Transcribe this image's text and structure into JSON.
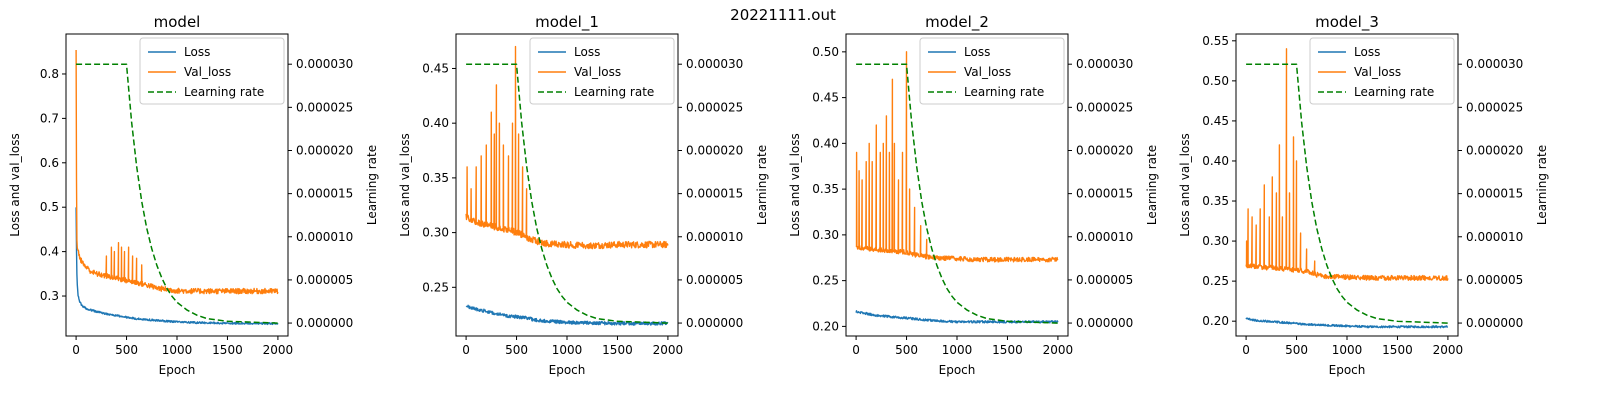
{
  "figure_title": "20221111.out",
  "legend_labels": [
    "Loss",
    "Val_loss",
    "Learning rate"
  ],
  "colors": {
    "loss": "#1f77b4",
    "val_loss": "#ff7f0e",
    "learning_rate": "#008000",
    "axes": "#000000"
  },
  "chart_data": [
    {
      "type": "line",
      "title": "model",
      "xlabel": "Epoch",
      "ylabel": "Loss and val_loss",
      "ylabel_right": "Learning rate",
      "xlim": [
        -100,
        2100
      ],
      "ylim": [
        0.21,
        0.89
      ],
      "ylim_right": [
        -1.5e-06,
        3.35e-05
      ],
      "xticks": [
        0,
        500,
        1000,
        1500,
        2000
      ],
      "yticks": [
        0.3,
        0.4,
        0.5,
        0.6,
        0.7,
        0.8
      ],
      "yticks_right": [
        0.0,
        5e-06,
        1e-05,
        1.5e-05,
        2e-05,
        2.5e-05,
        3e-05
      ],
      "legend_position": "upper right",
      "series": [
        {
          "name": "Loss",
          "axis": "left",
          "x": [
            0,
            5,
            10,
            20,
            40,
            60,
            100,
            150,
            200,
            300,
            400,
            500,
            600,
            800,
            1000,
            1200,
            1500,
            1800,
            2000
          ],
          "y": [
            0.5,
            0.38,
            0.33,
            0.3,
            0.285,
            0.278,
            0.272,
            0.268,
            0.265,
            0.26,
            0.256,
            0.252,
            0.249,
            0.245,
            0.242,
            0.24,
            0.239,
            0.238,
            0.238
          ],
          "noise": 0.002
        },
        {
          "name": "Val_loss",
          "axis": "left",
          "x": [
            0,
            3,
            6,
            10,
            20,
            40,
            60,
            100,
            150,
            200,
            300,
            400,
            500,
            600,
            700,
            800,
            1000,
            1200,
            1500,
            2000
          ],
          "y": [
            0.86,
            0.62,
            0.45,
            0.41,
            0.4,
            0.385,
            0.375,
            0.365,
            0.355,
            0.35,
            0.345,
            0.34,
            0.335,
            0.33,
            0.325,
            0.318,
            0.312,
            0.311,
            0.311,
            0.311
          ],
          "noise": 0.006,
          "spikes": [
            [
              300,
              0.39
            ],
            [
              350,
              0.41
            ],
            [
              380,
              0.4
            ],
            [
              420,
              0.42
            ],
            [
              450,
              0.41
            ],
            [
              480,
              0.4
            ],
            [
              520,
              0.41
            ],
            [
              560,
              0.39
            ],
            [
              600,
              0.385
            ],
            [
              650,
              0.37
            ]
          ]
        },
        {
          "name": "Learning rate",
          "axis": "right",
          "style": "dashed",
          "x": [
            0,
            500,
            550,
            600,
            650,
            700,
            750,
            800,
            850,
            900,
            950,
            1000,
            1100,
            1200,
            1300,
            1500,
            2000
          ],
          "y": [
            3e-05,
            3e-05,
            2.33e-05,
            1.82e-05,
            1.41e-05,
            1.1e-05,
            8.6e-06,
            6.7e-06,
            5.2e-06,
            4e-06,
            3.1e-06,
            2.4e-06,
            1.5e-06,
            9e-07,
            5e-07,
            2e-07,
            0.0
          ]
        }
      ]
    },
    {
      "type": "line",
      "title": "model_1",
      "xlabel": "Epoch",
      "ylabel": "Loss and val_loss",
      "ylabel_right": "Learning rate",
      "xlim": [
        -100,
        2100
      ],
      "ylim": [
        0.2055,
        0.4815
      ],
      "ylim_right": [
        -1.5e-06,
        3.35e-05
      ],
      "xticks": [
        0,
        500,
        1000,
        1500,
        2000
      ],
      "yticks": [
        0.25,
        0.3,
        0.35,
        0.4,
        0.45
      ],
      "yticks_right": [
        0.0,
        5e-06,
        1e-05,
        1.5e-05,
        2e-05,
        2.5e-05,
        3e-05
      ],
      "legend_position": "upper right",
      "series": [
        {
          "name": "Loss",
          "axis": "left",
          "x": [
            0,
            100,
            200,
            300,
            400,
            500,
            600,
            700,
            800,
            1000,
            1200,
            1500,
            2000
          ],
          "y": [
            0.233,
            0.23,
            0.228,
            0.226,
            0.224,
            0.223,
            0.222,
            0.22,
            0.219,
            0.218,
            0.2175,
            0.217,
            0.217
          ],
          "noise": 0.0015
        },
        {
          "name": "Val_loss",
          "axis": "left",
          "x": [
            0,
            100,
            200,
            300,
            400,
            500,
            550,
            600,
            700,
            800,
            1000,
            1200,
            1500,
            2000
          ],
          "y": [
            0.315,
            0.31,
            0.307,
            0.305,
            0.303,
            0.3,
            0.298,
            0.295,
            0.292,
            0.29,
            0.289,
            0.288,
            0.289,
            0.289
          ],
          "noise": 0.003,
          "spikes": [
            [
              10,
              0.36
            ],
            [
              50,
              0.34
            ],
            [
              100,
              0.36
            ],
            [
              150,
              0.37
            ],
            [
              200,
              0.38
            ],
            [
              250,
              0.41
            ],
            [
              280,
              0.39
            ],
            [
              300,
              0.435
            ],
            [
              330,
              0.4
            ],
            [
              370,
              0.38
            ],
            [
              420,
              0.37
            ],
            [
              460,
              0.4
            ],
            [
              490,
              0.47
            ],
            [
              520,
              0.39
            ],
            [
              560,
              0.36
            ],
            [
              600,
              0.34
            ]
          ]
        },
        {
          "name": "Learning rate",
          "axis": "right",
          "style": "dashed",
          "x": [
            0,
            500,
            550,
            600,
            650,
            700,
            750,
            800,
            850,
            900,
            950,
            1000,
            1100,
            1200,
            1300,
            1500,
            2000
          ],
          "y": [
            3e-05,
            3e-05,
            2.33e-05,
            1.82e-05,
            1.41e-05,
            1.1e-05,
            8.6e-06,
            6.7e-06,
            5.2e-06,
            4e-06,
            3.1e-06,
            2.4e-06,
            1.5e-06,
            9e-07,
            5e-07,
            2e-07,
            0.0
          ]
        }
      ]
    },
    {
      "type": "line",
      "title": "model_2",
      "xlabel": "Epoch",
      "ylabel": "Loss and val_loss",
      "ylabel_right": "Learning rate",
      "xlim": [
        -100,
        2100
      ],
      "ylim": [
        0.1895,
        0.5195
      ],
      "ylim_right": [
        -1.5e-06,
        3.35e-05
      ],
      "xticks": [
        0,
        500,
        1000,
        1500,
        2000
      ],
      "yticks": [
        0.2,
        0.25,
        0.3,
        0.35,
        0.4,
        0.45,
        0.5
      ],
      "yticks_right": [
        0.0,
        5e-06,
        1e-05,
        1.5e-05,
        2e-05,
        2.5e-05,
        3e-05
      ],
      "legend_position": "upper right",
      "series": [
        {
          "name": "Loss",
          "axis": "left",
          "x": [
            0,
            100,
            200,
            300,
            400,
            500,
            600,
            800,
            1000,
            1200,
            1500,
            2000
          ],
          "y": [
            0.216,
            0.214,
            0.212,
            0.211,
            0.21,
            0.209,
            0.208,
            0.206,
            0.205,
            0.205,
            0.205,
            0.205
          ],
          "noise": 0.0012
        },
        {
          "name": "Val_loss",
          "axis": "left",
          "x": [
            0,
            100,
            200,
            300,
            400,
            500,
            600,
            700,
            800,
            1000,
            1200,
            1500,
            2000
          ],
          "y": [
            0.287,
            0.285,
            0.284,
            0.283,
            0.282,
            0.281,
            0.278,
            0.276,
            0.275,
            0.274,
            0.273,
            0.273,
            0.273
          ],
          "noise": 0.0025,
          "spikes": [
            [
              5,
              0.39
            ],
            [
              30,
              0.37
            ],
            [
              60,
              0.36
            ],
            [
              100,
              0.38
            ],
            [
              130,
              0.4
            ],
            [
              160,
              0.38
            ],
            [
              200,
              0.42
            ],
            [
              240,
              0.39
            ],
            [
              270,
              0.4
            ],
            [
              300,
              0.43
            ],
            [
              330,
              0.39
            ],
            [
              360,
              0.47
            ],
            [
              380,
              0.4
            ],
            [
              420,
              0.36
            ],
            [
              460,
              0.39
            ],
            [
              500,
              0.5
            ],
            [
              530,
              0.35
            ],
            [
              580,
              0.33
            ],
            [
              640,
              0.31
            ],
            [
              700,
              0.295
            ]
          ]
        },
        {
          "name": "Learning rate",
          "axis": "right",
          "style": "dashed",
          "x": [
            0,
            500,
            550,
            600,
            650,
            700,
            750,
            800,
            850,
            900,
            950,
            1000,
            1100,
            1200,
            1300,
            1500,
            2000
          ],
          "y": [
            3e-05,
            3e-05,
            2.33e-05,
            1.82e-05,
            1.41e-05,
            1.1e-05,
            8.6e-06,
            6.7e-06,
            5.2e-06,
            4e-06,
            3.1e-06,
            2.4e-06,
            1.5e-06,
            9e-07,
            5e-07,
            2e-07,
            0.0
          ]
        }
      ]
    },
    {
      "type": "line",
      "title": "model_3",
      "xlabel": "Epoch",
      "ylabel": "Loss and val_loss",
      "ylabel_right": "Learning rate",
      "xlim": [
        -100,
        2100
      ],
      "ylim": [
        0.1815,
        0.5585
      ],
      "ylim_right": [
        -1.5e-06,
        3.35e-05
      ],
      "xticks": [
        0,
        500,
        1000,
        1500,
        2000
      ],
      "yticks": [
        0.2,
        0.25,
        0.3,
        0.35,
        0.4,
        0.45,
        0.5,
        0.55
      ],
      "yticks_right": [
        0.0,
        5e-06,
        1e-05,
        1.5e-05,
        2e-05,
        2.5e-05,
        3e-05
      ],
      "legend_position": "upper right",
      "series": [
        {
          "name": "Loss",
          "axis": "left",
          "x": [
            0,
            100,
            200,
            300,
            400,
            500,
            600,
            800,
            1000,
            1200,
            1500,
            2000
          ],
          "y": [
            0.203,
            0.201,
            0.2,
            0.199,
            0.198,
            0.197,
            0.196,
            0.195,
            0.194,
            0.193,
            0.193,
            0.193
          ],
          "noise": 0.0012
        },
        {
          "name": "Val_loss",
          "axis": "left",
          "x": [
            0,
            100,
            200,
            300,
            400,
            500,
            600,
            700,
            800,
            1000,
            1200,
            1500,
            2000
          ],
          "y": [
            0.27,
            0.268,
            0.267,
            0.266,
            0.265,
            0.264,
            0.262,
            0.258,
            0.256,
            0.255,
            0.254,
            0.254,
            0.254
          ],
          "noise": 0.003,
          "spikes": [
            [
              5,
              0.3
            ],
            [
              20,
              0.34
            ],
            [
              60,
              0.33
            ],
            [
              100,
              0.32
            ],
            [
              140,
              0.34
            ],
            [
              180,
              0.37
            ],
            [
              230,
              0.33
            ],
            [
              260,
              0.38
            ],
            [
              300,
              0.36
            ],
            [
              330,
              0.42
            ],
            [
              360,
              0.33
            ],
            [
              400,
              0.54
            ],
            [
              430,
              0.36
            ],
            [
              470,
              0.43
            ],
            [
              500,
              0.4
            ],
            [
              540,
              0.31
            ],
            [
              600,
              0.29
            ],
            [
              680,
              0.275
            ]
          ]
        },
        {
          "name": "Learning rate",
          "axis": "right",
          "style": "dashed",
          "x": [
            0,
            500,
            550,
            600,
            650,
            700,
            750,
            800,
            850,
            900,
            950,
            1000,
            1100,
            1200,
            1300,
            1500,
            2000
          ],
          "y": [
            3e-05,
            3e-05,
            2.33e-05,
            1.82e-05,
            1.41e-05,
            1.1e-05,
            8.6e-06,
            6.7e-06,
            5.2e-06,
            4e-06,
            3.1e-06,
            2.4e-06,
            1.5e-06,
            9e-07,
            5e-07,
            2e-07,
            0.0
          ]
        }
      ]
    }
  ]
}
